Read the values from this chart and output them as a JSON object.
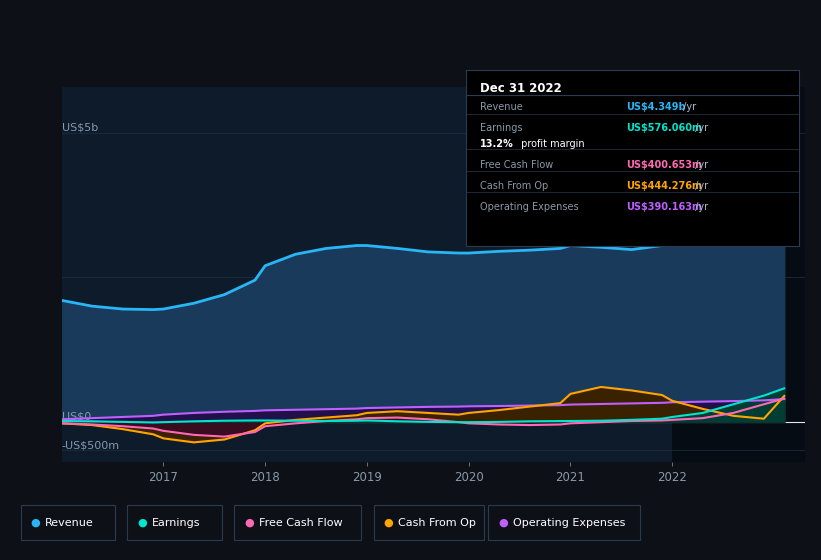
{
  "background_color": "#0d1117",
  "chart_bg_color": "#0d1b2a",
  "grid_color": "#1e3045",
  "zero_line_color": "#ffffff",
  "xlim": [
    2016.0,
    2023.3
  ],
  "ylim": [
    -700,
    5800
  ],
  "xtick_labels": [
    "2017",
    "2018",
    "2019",
    "2020",
    "2021",
    "2022"
  ],
  "xtick_positions": [
    2017,
    2018,
    2019,
    2020,
    2021,
    2022
  ],
  "highlight_x_start": 2022.0,
  "info_box": {
    "title": "Dec 31 2022",
    "rows": [
      {
        "label": "Revenue",
        "value": "US$4.349b",
        "suffix": " /yr",
        "value_color": "#29b6f6"
      },
      {
        "label": "Earnings",
        "value": "US$576.060m",
        "suffix": " /yr",
        "value_color": "#00e5cc"
      },
      {
        "label": "",
        "value": "13.2%",
        "suffix": " profit margin",
        "value_color": "#ffffff"
      },
      {
        "label": "Free Cash Flow",
        "value": "US$400.653m",
        "suffix": " /yr",
        "value_color": "#ff69b4"
      },
      {
        "label": "Cash From Op",
        "value": "US$444.276m",
        "suffix": " /yr",
        "value_color": "#ffa500"
      },
      {
        "label": "Operating Expenses",
        "value": "US$390.163m",
        "suffix": " /yr",
        "value_color": "#bf5fff"
      }
    ]
  },
  "series": {
    "revenue": {
      "color": "#29b6f6",
      "fill_color": "#1a3a5c",
      "line_width": 2.0,
      "values_x": [
        2016.0,
        2016.3,
        2016.6,
        2016.9,
        2017.0,
        2017.3,
        2017.6,
        2017.9,
        2018.0,
        2018.3,
        2018.6,
        2018.9,
        2019.0,
        2019.3,
        2019.6,
        2019.9,
        2020.0,
        2020.3,
        2020.6,
        2020.9,
        2021.0,
        2021.3,
        2021.6,
        2021.9,
        2022.0,
        2022.3,
        2022.6,
        2022.9,
        2023.1
      ],
      "values_y": [
        2100,
        2000,
        1950,
        1940,
        1950,
        2050,
        2200,
        2450,
        2700,
        2900,
        3000,
        3050,
        3050,
        3000,
        2940,
        2920,
        2920,
        2950,
        2970,
        3000,
        3050,
        3020,
        2980,
        3050,
        3200,
        3650,
        4050,
        4250,
        4350
      ]
    },
    "earnings": {
      "color": "#00e5cc",
      "fill_color": "#003d35",
      "line_width": 1.5,
      "values_x": [
        2016.0,
        2016.3,
        2016.6,
        2016.9,
        2017.0,
        2017.3,
        2017.6,
        2017.9,
        2018.0,
        2018.3,
        2018.6,
        2018.9,
        2019.0,
        2019.3,
        2019.6,
        2019.9,
        2020.0,
        2020.3,
        2020.6,
        2020.9,
        2021.0,
        2021.3,
        2021.6,
        2021.9,
        2022.0,
        2022.3,
        2022.6,
        2022.9,
        2023.1
      ],
      "values_y": [
        10,
        5,
        -5,
        -15,
        -10,
        5,
        15,
        20,
        20,
        15,
        10,
        15,
        20,
        5,
        -5,
        -10,
        -10,
        -5,
        5,
        10,
        10,
        15,
        30,
        50,
        80,
        150,
        300,
        450,
        576
      ]
    },
    "free_cash_flow": {
      "color": "#ff69b4",
      "fill_color": "#3a0c20",
      "line_width": 1.5,
      "values_x": [
        2016.0,
        2016.3,
        2016.6,
        2016.9,
        2017.0,
        2017.3,
        2017.6,
        2017.9,
        2018.0,
        2018.3,
        2018.6,
        2018.9,
        2019.0,
        2019.3,
        2019.6,
        2019.9,
        2020.0,
        2020.3,
        2020.6,
        2020.9,
        2021.0,
        2021.3,
        2021.6,
        2021.9,
        2022.0,
        2022.3,
        2022.6,
        2022.9,
        2023.1
      ],
      "values_y": [
        -30,
        -50,
        -80,
        -120,
        -160,
        -230,
        -260,
        -180,
        -80,
        -30,
        10,
        40,
        60,
        70,
        40,
        -10,
        -30,
        -50,
        -60,
        -50,
        -30,
        -10,
        10,
        20,
        30,
        60,
        150,
        300,
        400
      ]
    },
    "cash_from_op": {
      "color": "#ffa500",
      "fill_color": "#3a2200",
      "line_width": 1.5,
      "values_x": [
        2016.0,
        2016.3,
        2016.6,
        2016.9,
        2017.0,
        2017.3,
        2017.6,
        2017.9,
        2018.0,
        2018.3,
        2018.6,
        2018.9,
        2019.0,
        2019.3,
        2019.6,
        2019.9,
        2020.0,
        2020.3,
        2020.6,
        2020.9,
        2021.0,
        2021.3,
        2021.6,
        2021.9,
        2022.0,
        2022.3,
        2022.6,
        2022.9,
        2023.1
      ],
      "values_y": [
        -30,
        -60,
        -130,
        -220,
        -290,
        -360,
        -310,
        -150,
        -30,
        30,
        70,
        110,
        150,
        180,
        150,
        120,
        150,
        200,
        260,
        320,
        480,
        600,
        540,
        460,
        360,
        220,
        100,
        50,
        444
      ]
    },
    "operating_expenses": {
      "color": "#bf5fff",
      "fill_color": "#22104a",
      "line_width": 1.5,
      "values_x": [
        2016.0,
        2016.3,
        2016.6,
        2016.9,
        2017.0,
        2017.3,
        2017.6,
        2017.9,
        2018.0,
        2018.3,
        2018.6,
        2018.9,
        2019.0,
        2019.3,
        2019.6,
        2019.9,
        2020.0,
        2020.3,
        2020.6,
        2020.9,
        2021.0,
        2021.3,
        2021.6,
        2021.9,
        2022.0,
        2022.3,
        2022.6,
        2022.9,
        2023.1
      ],
      "values_y": [
        40,
        60,
        80,
        100,
        120,
        150,
        170,
        185,
        195,
        205,
        215,
        225,
        235,
        245,
        255,
        260,
        265,
        270,
        278,
        285,
        295,
        305,
        315,
        325,
        335,
        345,
        355,
        368,
        390
      ]
    }
  },
  "legend": [
    {
      "label": "Revenue",
      "color": "#29b6f6"
    },
    {
      "label": "Earnings",
      "color": "#00e5cc"
    },
    {
      "label": "Free Cash Flow",
      "color": "#ff69b4"
    },
    {
      "label": "Cash From Op",
      "color": "#ffa500"
    },
    {
      "label": "Operating Expenses",
      "color": "#bf5fff"
    }
  ]
}
